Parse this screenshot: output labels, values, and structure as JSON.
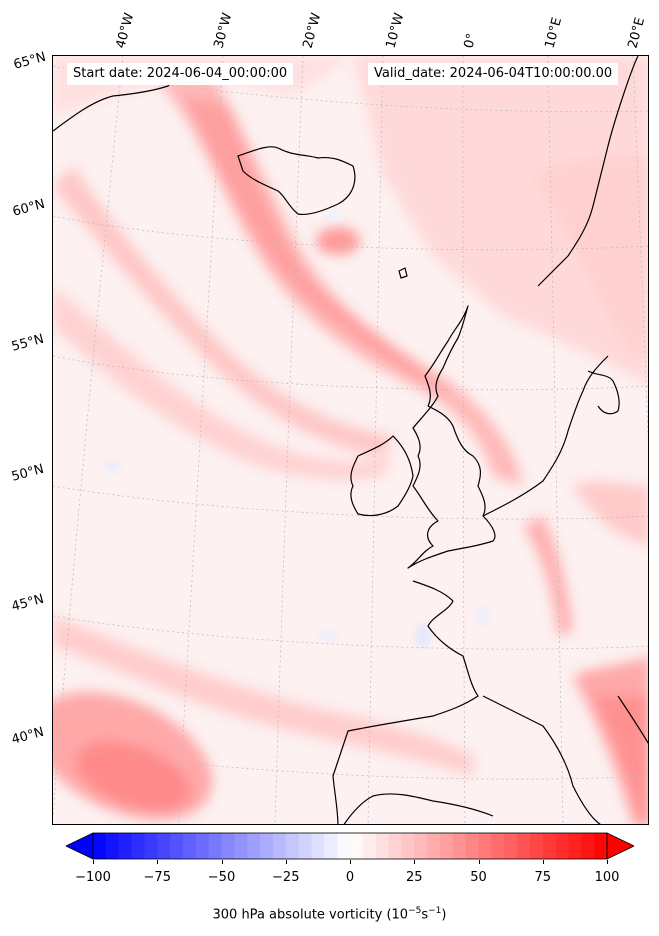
{
  "header": {
    "start_date": "Start date: 2024-06-04_00:00:00",
    "valid_date": "Valid_date: 2024-06-04T10:00:00.00"
  },
  "longitude_labels": [
    "40°W",
    "30°W",
    "20°W",
    "10°W",
    "0°",
    "10°E",
    "20°E"
  ],
  "latitude_labels": [
    "65°N",
    "60°N",
    "55°N",
    "50°N",
    "45°N",
    "40°N"
  ],
  "colorbar": {
    "ticks": [
      "−100",
      "−75",
      "−50",
      "−25",
      "0",
      "25",
      "50",
      "75",
      "100"
    ],
    "label_prefix": "300 hPa absolute vorticity (10",
    "label_exp1": "−5",
    "label_mid": "s",
    "label_exp2": "−1",
    "label_suffix": ")",
    "min": -100,
    "max": 100,
    "colors": {
      "negative": "#0000ff",
      "neutral": "#ffffff",
      "positive": "#ff0000"
    }
  },
  "field": {
    "name": "300 hPa absolute vorticity",
    "pattern": "positive vorticity bands over North Atlantic, UK and Bay of Biscay"
  }
}
